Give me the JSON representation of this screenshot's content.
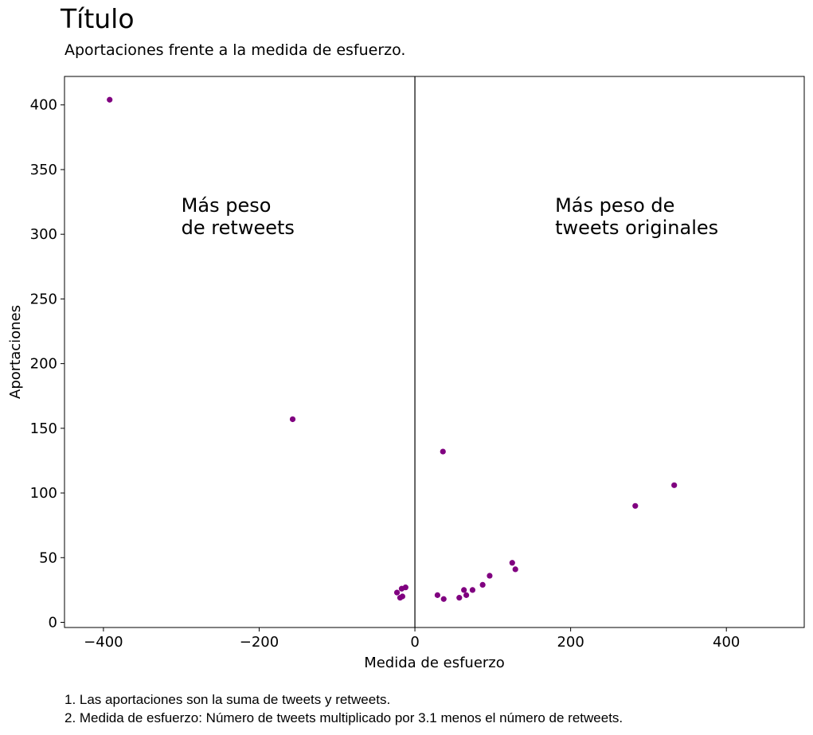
{
  "chart_data": {
    "type": "scatter",
    "title": "Título",
    "subtitle": "Aportaciones frente a la medida de esfuerzo.",
    "xlabel": "Medida de esfuerzo",
    "ylabel": "Aportaciones",
    "xlim": [
      -450,
      500
    ],
    "ylim": [
      -4,
      422
    ],
    "xticks": [
      -400,
      -200,
      0,
      200,
      400
    ],
    "xtick_labels": [
      "−400",
      "−200",
      "0",
      "200",
      "400"
    ],
    "yticks": [
      0,
      50,
      100,
      150,
      200,
      250,
      300,
      350,
      400
    ],
    "ytick_labels": [
      "0",
      "50",
      "100",
      "150",
      "200",
      "250",
      "300",
      "350",
      "400"
    ],
    "grid": false,
    "vertical_line_x": 0,
    "marker_color": "#800080",
    "annotations": [
      {
        "lines": [
          "Más peso",
          "de retweets"
        ],
        "x": -300,
        "y": 300
      },
      {
        "lines": [
          "Más peso de",
          "tweets originales"
        ],
        "x": 180,
        "y": 300
      }
    ],
    "points": [
      {
        "x": -392,
        "y": 404
      },
      {
        "x": -157,
        "y": 157
      },
      {
        "x": -23,
        "y": 23
      },
      {
        "x": -19,
        "y": 19
      },
      {
        "x": -17,
        "y": 26
      },
      {
        "x": -16,
        "y": 20
      },
      {
        "x": -12,
        "y": 27
      },
      {
        "x": 29,
        "y": 21
      },
      {
        "x": 36,
        "y": 132
      },
      {
        "x": 37,
        "y": 18
      },
      {
        "x": 57,
        "y": 19
      },
      {
        "x": 63,
        "y": 25
      },
      {
        "x": 66,
        "y": 21
      },
      {
        "x": 74,
        "y": 25
      },
      {
        "x": 87,
        "y": 29
      },
      {
        "x": 96,
        "y": 36
      },
      {
        "x": 125,
        "y": 46
      },
      {
        "x": 129,
        "y": 41
      },
      {
        "x": 283,
        "y": 90
      },
      {
        "x": 333,
        "y": 106
      }
    ]
  },
  "notes": [
    "1. Las aportaciones son la suma de tweets y retweets.",
    "2. Medida de esfuerzo: Número de tweets multiplicado por 3.1 menos el número de retweets."
  ]
}
